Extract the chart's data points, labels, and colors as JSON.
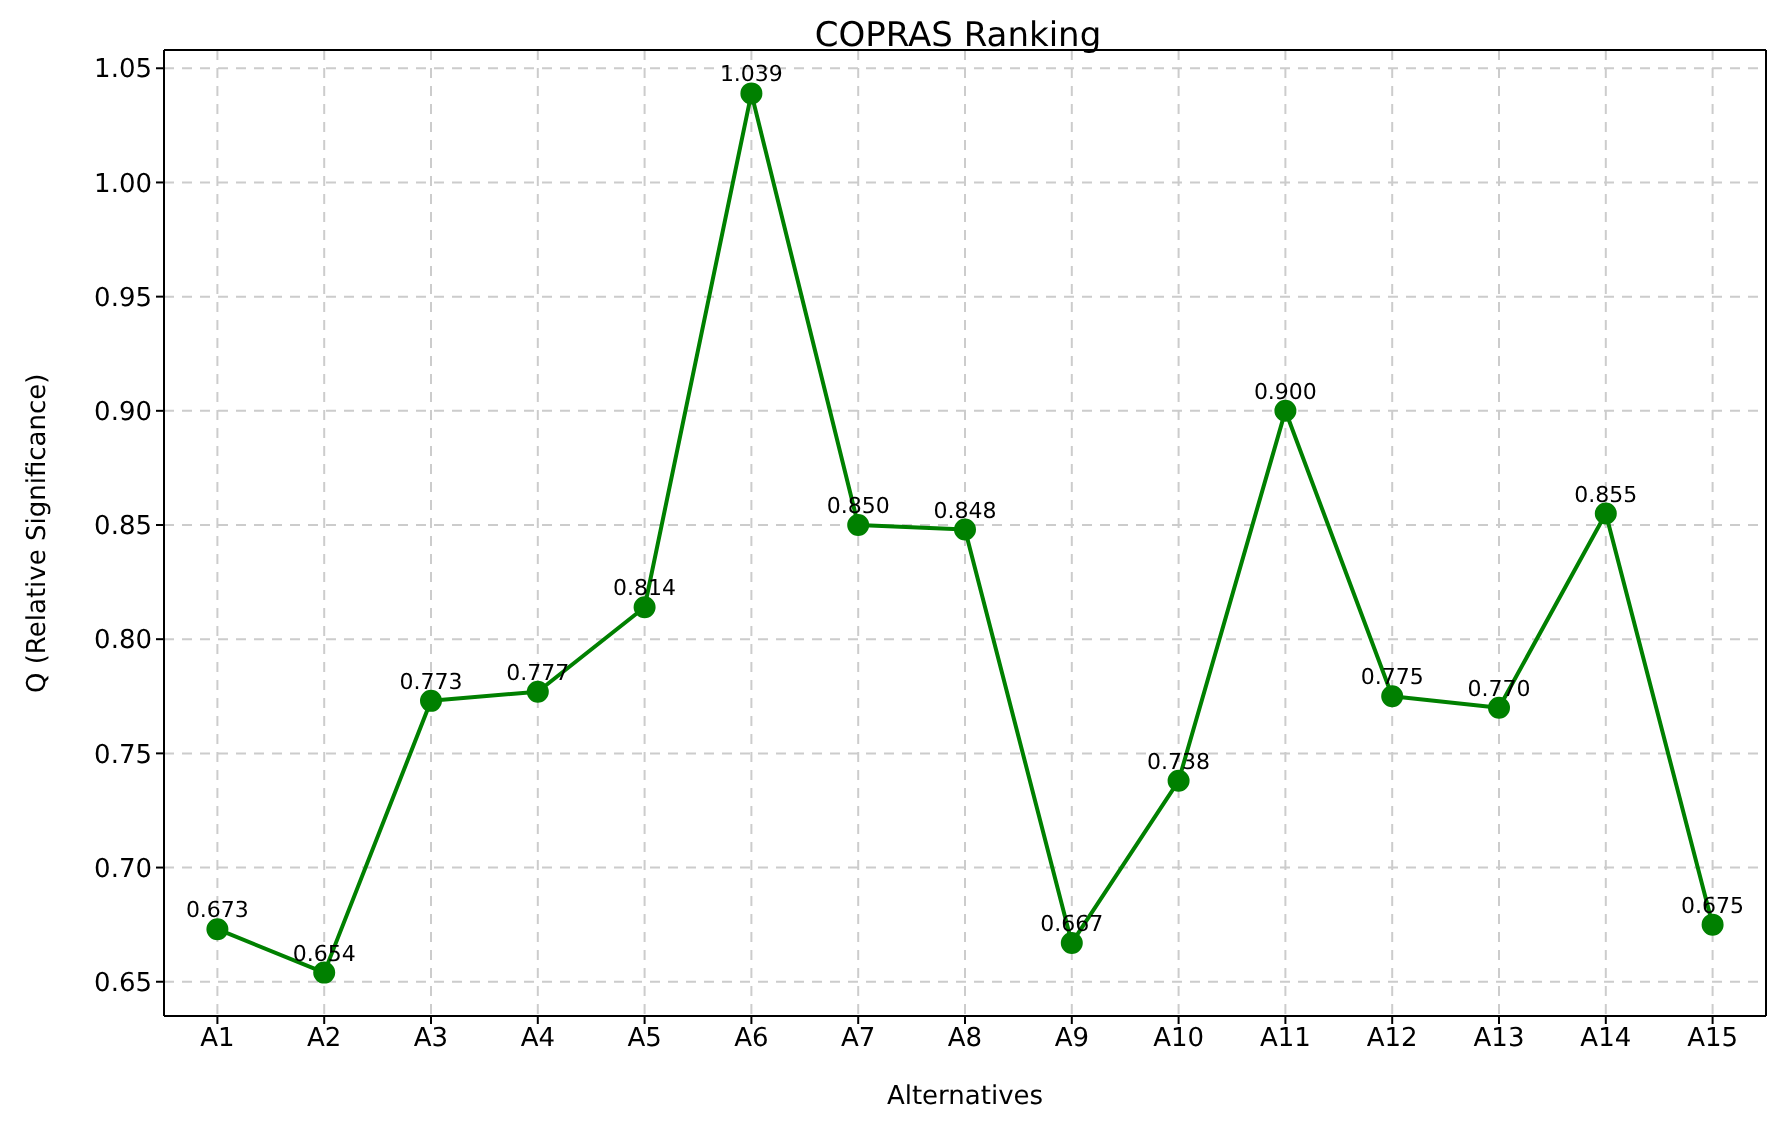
{
  "chart_data": {
    "type": "line",
    "title": "COPRAS Ranking",
    "xlabel": "Alternatives",
    "ylabel": "Q (Relative Significance)",
    "categories": [
      "A1",
      "A2",
      "A3",
      "A4",
      "A5",
      "A6",
      "A7",
      "A8",
      "A9",
      "A10",
      "A11",
      "A12",
      "A13",
      "A14",
      "A15"
    ],
    "series": [
      {
        "color": "#008000",
        "values": [
          0.673,
          0.654,
          0.773,
          0.777,
          0.814,
          1.039,
          0.85,
          0.848,
          0.667,
          0.738,
          0.9,
          0.775,
          0.77,
          0.855,
          0.675
        ],
        "value_labels": [
          "0.673",
          "0.654",
          "0.773",
          "0.777",
          "0.814",
          "1.039",
          "0.850",
          "0.848",
          "0.667",
          "0.738",
          "0.900",
          "0.775",
          "0.770",
          "0.855",
          "0.675"
        ]
      }
    ],
    "ylim": [
      0.635,
      1.058
    ],
    "yticks": [
      {
        "value": 0.65,
        "label": "0.65"
      },
      {
        "value": 0.7,
        "label": "0.70"
      },
      {
        "value": 0.75,
        "label": "0.75"
      },
      {
        "value": 0.8,
        "label": "0.80"
      },
      {
        "value": 0.85,
        "label": "0.85"
      },
      {
        "value": 0.9,
        "label": "0.90"
      },
      {
        "value": 0.95,
        "label": "0.95"
      },
      {
        "value": 1.0,
        "label": "1.00"
      },
      {
        "value": 1.05,
        "label": "1.05"
      }
    ],
    "grid": true,
    "marker": "circle",
    "line_style": "solid",
    "legend": false
  }
}
